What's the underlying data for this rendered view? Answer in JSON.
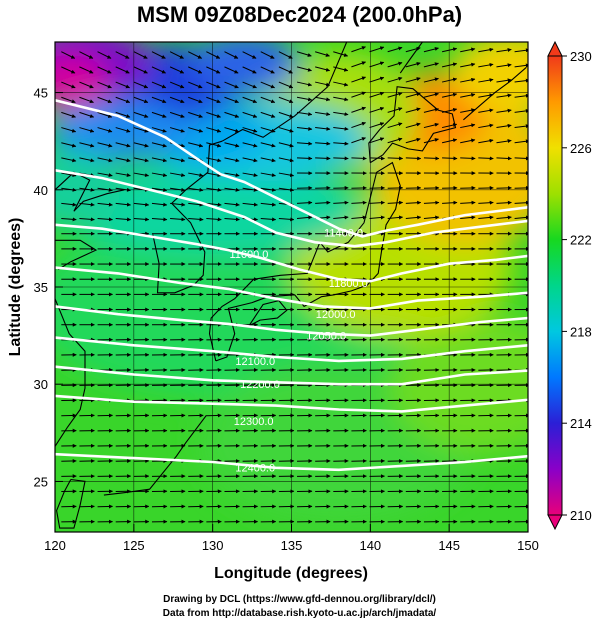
{
  "title": "MSM 09Z08Dec2024 (200.0hPa)",
  "x_axis": {
    "label": "Longitude (degrees)",
    "range": [
      120,
      150
    ],
    "ticks": [
      "120",
      "125",
      "130",
      "135",
      "140",
      "145",
      "150"
    ]
  },
  "y_axis": {
    "label": "Latitude  (degrees)",
    "range": [
      22.4,
      47.6
    ],
    "ticks": [
      "25",
      "30",
      "35",
      "40",
      "45"
    ]
  },
  "colorbar": {
    "range": [
      210,
      230
    ],
    "ticks": [
      "210",
      "214",
      "218",
      "222",
      "226",
      "230"
    ],
    "colors": [
      "#e8007a",
      "#8a00c8",
      "#2b1fd6",
      "#0078ff",
      "#00c8e0",
      "#00d68a",
      "#17d820",
      "#9ee000",
      "#f0e000",
      "#ff9a00",
      "#f03a1a"
    ]
  },
  "contour_labels": [
    {
      "text": "11400.0",
      "lon": 138.3,
      "lat": 37.6
    },
    {
      "text": "11600.0",
      "lon": 132.3,
      "lat": 36.5
    },
    {
      "text": "11800.0",
      "lon": 138.6,
      "lat": 35.0
    },
    {
      "text": "12000.0",
      "lon": 137.8,
      "lat": 33.4
    },
    {
      "text": "12050.0",
      "lon": 137.2,
      "lat": 32.3
    },
    {
      "text": "12100.0",
      "lon": 132.7,
      "lat": 31.0
    },
    {
      "text": "12200.0",
      "lon": 133.0,
      "lat": 29.8
    },
    {
      "text": "12300.0",
      "lon": 132.6,
      "lat": 27.9
    },
    {
      "text": "12400.0",
      "lon": 132.7,
      "lat": 25.5
    }
  ],
  "credits": {
    "line1": "Drawing by DCL (https://www.gfd-dennou.org/library/dcl/)",
    "line2": "Data from http://database.rish.kyoto-u.ac.jp/arch/jmadata/"
  }
}
